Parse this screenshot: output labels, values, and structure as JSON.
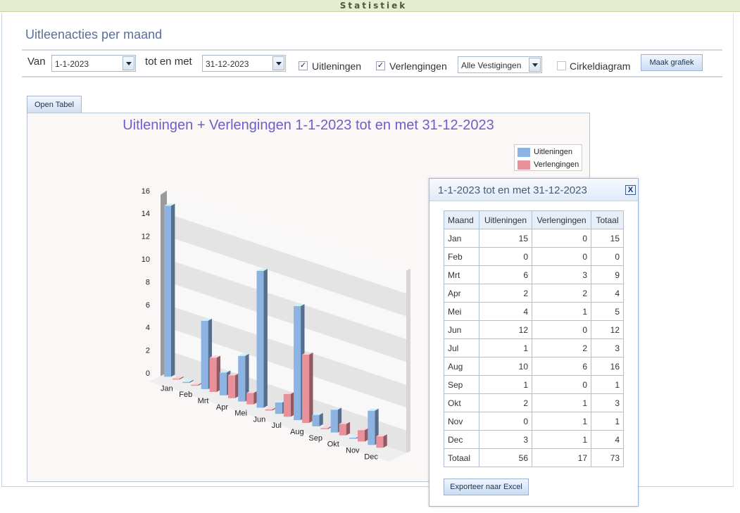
{
  "header": {
    "title": "Statistiek"
  },
  "page": {
    "title": "Uitleenacties per maand"
  },
  "filters": {
    "from_label": "Van",
    "from_value": "1-1-2023",
    "to_label": "tot en met",
    "to_value": "31-12-2023",
    "loans_label": "Uitleningen",
    "loans_checked": true,
    "renewals_label": "Verlengingen",
    "renewals_checked": true,
    "branch_value": "Alle Vestigingen",
    "pie_label": "Cirkeldiagram",
    "pie_checked": false,
    "make_chart_label": "Maak grafiek"
  },
  "open_table_label": "Open Tabel",
  "colors": {
    "loans": "#8db3e2",
    "renewals": "#e8919b",
    "title": "#6c5fc9"
  },
  "chart_data": {
    "type": "bar",
    "title": "Uitleningen + Verlengingen 1-1-2023 tot en met 31-12-2023",
    "categories": [
      "Jan",
      "Feb",
      "Mrt",
      "Apr",
      "Mei",
      "Jun",
      "Jul",
      "Aug",
      "Sep",
      "Okt",
      "Nov",
      "Dec"
    ],
    "series": [
      {
        "name": "Uitleningen",
        "values": [
          15,
          0,
          6,
          2,
          4,
          12,
          1,
          10,
          1,
          2,
          0,
          3
        ]
      },
      {
        "name": "Verlengingen",
        "values": [
          0,
          0,
          3,
          2,
          1,
          0,
          2,
          6,
          0,
          1,
          1,
          1
        ]
      }
    ],
    "ylim": [
      0,
      16
    ],
    "yticks": [
      0,
      2,
      4,
      6,
      8,
      10,
      12,
      14,
      16
    ],
    "legend": "top-right",
    "grid": true,
    "style": "3d"
  },
  "popup": {
    "title": "1-1-2023 tot en met 31-12-2023",
    "close_label": "X",
    "columns": [
      "Maand",
      "Uitleningen",
      "Verlengingen",
      "Totaal"
    ],
    "rows": [
      [
        "Jan",
        15,
        0,
        15
      ],
      [
        "Feb",
        0,
        0,
        0
      ],
      [
        "Mrt",
        6,
        3,
        9
      ],
      [
        "Apr",
        2,
        2,
        4
      ],
      [
        "Mei",
        4,
        1,
        5
      ],
      [
        "Jun",
        12,
        0,
        12
      ],
      [
        "Jul",
        1,
        2,
        3
      ],
      [
        "Aug",
        10,
        6,
        16
      ],
      [
        "Sep",
        1,
        0,
        1
      ],
      [
        "Okt",
        2,
        1,
        3
      ],
      [
        "Nov",
        0,
        1,
        1
      ],
      [
        "Dec",
        3,
        1,
        4
      ]
    ],
    "total_row": [
      "Totaal",
      56,
      17,
      73
    ],
    "export_label": "Exporteer naar Excel"
  }
}
